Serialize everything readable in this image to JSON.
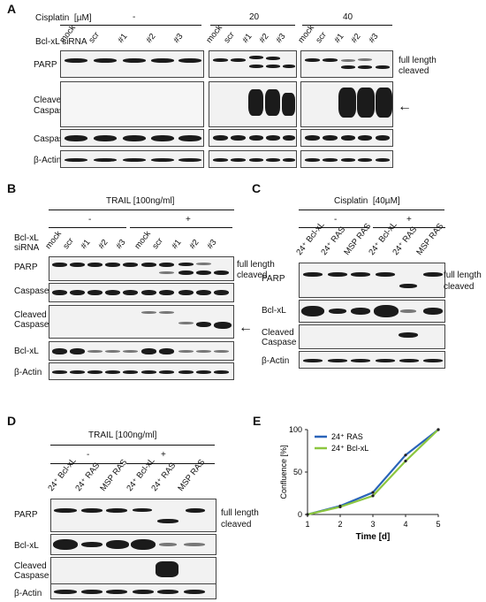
{
  "panelA": {
    "label": "A",
    "cisplatin": "Cisplatin",
    "unit": "[µM]",
    "dose_minus": "-",
    "dose_20": "20",
    "dose_40": "40",
    "sirna": "Bcl-xL siRNA",
    "lanes": [
      "mock",
      "scr",
      "#1",
      "#2",
      "#3",
      "mock",
      "scr",
      "#1",
      "#2",
      "#3",
      "mock",
      "scr",
      "#1",
      "#2",
      "#3"
    ],
    "rows": [
      "PARP",
      "Cleaved Caspase 3",
      "Caspase 3",
      "β-Actin"
    ],
    "row_cleaved_1": "Cleaved",
    "row_cleaved_2": "Caspase 3",
    "full_length": "full length",
    "cleaved": "cleaved",
    "arrow": "←"
  },
  "panelB": {
    "label": "B",
    "treat": "TRAIL [100ng/ml]",
    "minus": "-",
    "plus": "+",
    "sirna1": "Bcl-xL",
    "sirna2": "siRNA",
    "lanes": [
      "mock",
      "scr",
      "#1",
      "#2",
      "#3",
      "mock",
      "scr",
      "#1",
      "#2",
      "#3"
    ],
    "rows": [
      "PARP",
      "Caspase 3",
      "Cleaved",
      "Caspase 3",
      "Bcl-xL",
      "β-Actin"
    ],
    "full_length": "full length",
    "cleaved": "cleaved",
    "arrow": "←"
  },
  "panelC": {
    "label": "C",
    "treat": "Cisplatin  [40µM]",
    "minus": "-",
    "plus": "+",
    "lanes": [
      "24⁺ Bcl-xL",
      "24⁺ RAS",
      "MSP RAS",
      "24⁺ Bcl-xL",
      "24⁺ RAS",
      "MSP RAS"
    ],
    "rows": [
      "PARP",
      "Bcl-xL",
      "Cleaved",
      "Caspase 3",
      "β-Actin"
    ],
    "full_length": "full length",
    "cleaved": "cleaved"
  },
  "panelD": {
    "label": "D",
    "treat": "TRAIL [100ng/ml]",
    "minus": "-",
    "plus": "+",
    "lanes": [
      "24⁺ Bcl-xL",
      "24⁺ RAS",
      "MSP RAS",
      "24⁺ Bcl-xL",
      "24⁺ RAS",
      "MSP RAS"
    ],
    "rows": [
      "PARP",
      "Bcl-xL",
      "Cleaved",
      "Caspase 3",
      "β-Actin"
    ],
    "full_length": "full length",
    "cleaved": "cleaved"
  },
  "panelE": {
    "label": "E"
  },
  "chart_data": {
    "type": "line",
    "xlabel": "Time [d]",
    "ylabel": "Confluence [%]",
    "x": [
      1,
      2,
      3,
      4,
      5
    ],
    "xlim": [
      1,
      5
    ],
    "ylim": [
      0,
      100
    ],
    "yticks": [
      0,
      50,
      100
    ],
    "legend_position": "top-left",
    "series": [
      {
        "name": "24⁺ RAS",
        "color": "#2a64b8",
        "values": [
          0,
          10,
          26,
          70,
          100
        ]
      },
      {
        "name": "24⁺ Bcl-xL",
        "color": "#8cc63f",
        "values": [
          0,
          9,
          22,
          63,
          100
        ]
      }
    ]
  }
}
